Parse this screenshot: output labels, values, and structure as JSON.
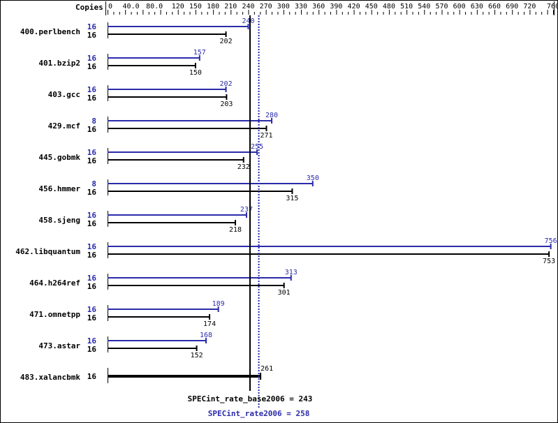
{
  "chart_data": {
    "type": "bar",
    "orientation": "horizontal",
    "axis_label": "Copies",
    "xlim": [
      0,
      760
    ],
    "tick_labels": [
      "0",
      "40.0",
      "80.0",
      "120",
      "150",
      "180",
      "210",
      "240",
      "270",
      "300",
      "330",
      "360",
      "390",
      "420",
      "450",
      "480",
      "510",
      "540",
      "570",
      "600",
      "630",
      "660",
      "690",
      "720",
      "760"
    ],
    "tick_values": [
      0,
      40,
      80,
      120,
      150,
      180,
      210,
      240,
      270,
      300,
      330,
      360,
      390,
      420,
      450,
      480,
      510,
      540,
      570,
      600,
      630,
      660,
      690,
      720,
      760
    ],
    "colors": {
      "peak": "#2b2baa",
      "base": "#000000"
    },
    "benchmarks": [
      {
        "name": "400.perlbench",
        "peak_copies": "16",
        "peak": 240,
        "base_copies": "16",
        "base": 202
      },
      {
        "name": "401.bzip2",
        "peak_copies": "16",
        "peak": 157,
        "base_copies": "16",
        "base": 150
      },
      {
        "name": "403.gcc",
        "peak_copies": "16",
        "peak": 202,
        "base_copies": "16",
        "base": 203
      },
      {
        "name": "429.mcf",
        "peak_copies": "8",
        "peak": 280,
        "base_copies": "16",
        "base": 271
      },
      {
        "name": "445.gobmk",
        "peak_copies": "16",
        "peak": 255,
        "base_copies": "16",
        "base": 232
      },
      {
        "name": "456.hmmer",
        "peak_copies": "8",
        "peak": 350,
        "base_copies": "16",
        "base": 315
      },
      {
        "name": "458.sjeng",
        "peak_copies": "16",
        "peak": 237,
        "base_copies": "16",
        "base": 218
      },
      {
        "name": "462.libquantum",
        "peak_copies": "16",
        "peak": 756,
        "base_copies": "16",
        "base": 753
      },
      {
        "name": "464.h264ref",
        "peak_copies": "16",
        "peak": 313,
        "base_copies": "16",
        "base": 301
      },
      {
        "name": "471.omnetpp",
        "peak_copies": "16",
        "peak": 189,
        "base_copies": "16",
        "base": 174
      },
      {
        "name": "473.astar",
        "peak_copies": "16",
        "peak": 168,
        "base_copies": "16",
        "base": 152
      },
      {
        "name": "483.xalancbmk",
        "combined": true,
        "base_copies": "16",
        "base": 261
      }
    ],
    "base_metric": {
      "label": "SPECint_rate_base2006 = 243",
      "value": 243
    },
    "peak_metric": {
      "label": "SPECint_rate2006 = 258",
      "value": 258
    }
  }
}
